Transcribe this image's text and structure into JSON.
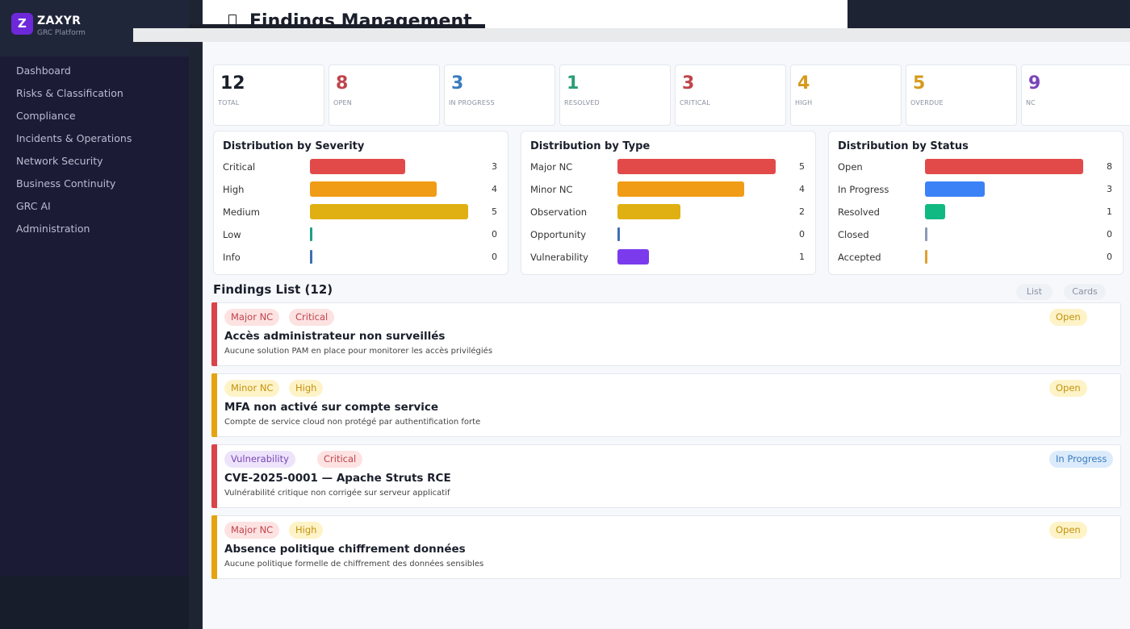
{
  "brand": {
    "logo_letter": "Z",
    "name": "ZAXYR",
    "subtitle": "GRC Platform"
  },
  "sidebar": {
    "items": [
      {
        "label": "Dashboard"
      },
      {
        "label": "Risks & Classification"
      },
      {
        "label": "Compliance"
      },
      {
        "label": "Incidents & Operations"
      },
      {
        "label": "Network Security"
      },
      {
        "label": "Business Continuity"
      },
      {
        "label": "GRC AI"
      },
      {
        "label": "Administration"
      }
    ]
  },
  "header": {
    "title": "Findings Management",
    "title_icon": "document-icon"
  },
  "stats": [
    {
      "value": "12",
      "label": "TOTAL",
      "color": "#1a1f2b"
    },
    {
      "value": "8",
      "label": "OPEN",
      "color": "#c0444b"
    },
    {
      "value": "3",
      "label": "IN PROGRESS",
      "color": "#3a7bbf"
    },
    {
      "value": "1",
      "label": "RESOLVED",
      "color": "#2a9d78"
    },
    {
      "value": "3",
      "label": "CRITICAL",
      "color": "#c0444b"
    },
    {
      "value": "4",
      "label": "HIGH",
      "color": "#d69a1e"
    },
    {
      "value": "5",
      "label": "OVERDUE",
      "color": "#d69a1e"
    },
    {
      "value": "9",
      "label": "NC",
      "color": "#7a45b8"
    }
  ],
  "distributions": [
    {
      "title": "Distribution by Severity",
      "rows": [
        {
          "label": "Critical",
          "count": "3",
          "value": 3,
          "color": "#e24a4a"
        },
        {
          "label": "High",
          "count": "4",
          "value": 4,
          "color": "#f09c16"
        },
        {
          "label": "Medium",
          "count": "5",
          "value": 5,
          "color": "#e0b012"
        },
        {
          "label": "Low",
          "count": "0",
          "value": 0,
          "color": "#1f9e8a"
        },
        {
          "label": "Info",
          "count": "0",
          "value": 0,
          "color": "#3f6fb3"
        }
      ]
    },
    {
      "title": "Distribution by Type",
      "rows": [
        {
          "label": "Major NC",
          "count": "5",
          "value": 5,
          "color": "#e24a4a"
        },
        {
          "label": "Minor NC",
          "count": "4",
          "value": 4,
          "color": "#f09c16"
        },
        {
          "label": "Observation",
          "count": "2",
          "value": 2,
          "color": "#e0b012"
        },
        {
          "label": "Opportunity",
          "count": "0",
          "value": 0,
          "color": "#3f6fb3"
        },
        {
          "label": "Vulnerability",
          "count": "1",
          "value": 1,
          "color": "#7c3aed"
        }
      ]
    },
    {
      "title": "Distribution by Status",
      "rows": [
        {
          "label": "Open",
          "count": "8",
          "value": 8,
          "color": "#e24a4a"
        },
        {
          "label": "In Progress",
          "count": "3",
          "value": 3,
          "color": "#3b82f6"
        },
        {
          "label": "Resolved",
          "count": "1",
          "value": 1,
          "color": "#10b981"
        },
        {
          "label": "Closed",
          "count": "0",
          "value": 0,
          "color": "#8a9bb5"
        },
        {
          "label": "Accepted",
          "count": "0",
          "value": 0,
          "color": "#e0a030"
        }
      ]
    }
  ],
  "findings_list": {
    "title": "Findings List (12)",
    "view_list_label": "List",
    "view_cards_label": "Cards",
    "items": [
      {
        "type": "Major NC",
        "type_bg": "#fde2e2",
        "type_fg": "#c0444b",
        "severity": "Critical",
        "sev_bg": "#fde2e2",
        "sev_fg": "#c0444b",
        "status": "Open",
        "status_bg": "#fdf3c7",
        "status_fg": "#c49210",
        "accent": "#d9444b",
        "title": "Accès administrateur non surveillés",
        "description": "Aucune solution PAM en place pour monitorer les accès privilégiés"
      },
      {
        "type": "Minor NC",
        "type_bg": "#fdf3c7",
        "type_fg": "#c49210",
        "severity": "High",
        "sev_bg": "#fdf3c7",
        "sev_fg": "#c49210",
        "status": "Open",
        "status_bg": "#fdf3c7",
        "status_fg": "#c49210",
        "accent": "#e4a412",
        "title": "MFA non activé sur compte service",
        "description": "Compte de service cloud non protégé par authentification forte"
      },
      {
        "type": "Vulnerability",
        "type_bg": "#ede4fb",
        "type_fg": "#7a45b8",
        "severity": "Critical",
        "sev_bg": "#fde2e2",
        "sev_fg": "#c0444b",
        "status": "In Progress",
        "status_bg": "#dcebfb",
        "status_fg": "#3a7bbf",
        "accent": "#d9444b",
        "title": "CVE-2025-0001 — Apache Struts RCE",
        "description": "Vulnérabilité critique non corrigée sur serveur applicatif"
      },
      {
        "type": "Major NC",
        "type_bg": "#fde2e2",
        "type_fg": "#c0444b",
        "severity": "High",
        "sev_bg": "#fdf3c7",
        "sev_fg": "#c49210",
        "status": "Open",
        "status_bg": "#fdf3c7",
        "status_fg": "#c49210",
        "accent": "#e4a412",
        "title": "Absence politique chiffrement données",
        "description": "Aucune politique formelle de chiffrement des données sensibles"
      }
    ]
  }
}
